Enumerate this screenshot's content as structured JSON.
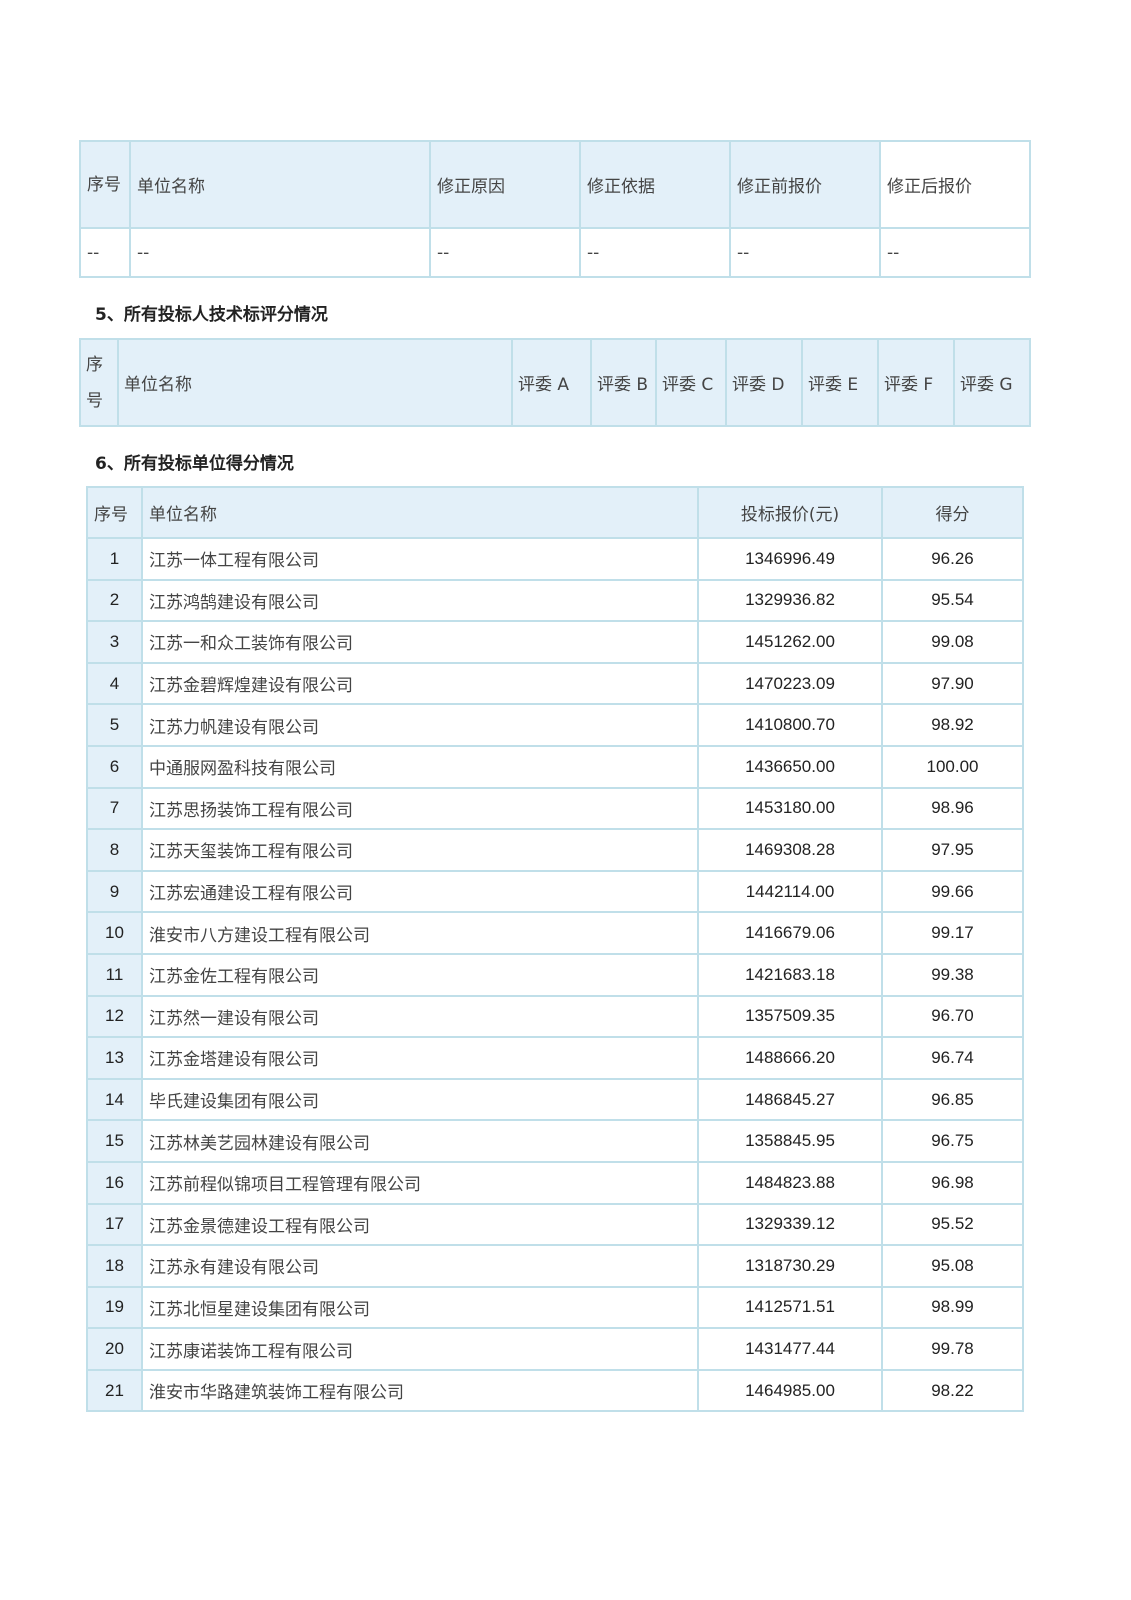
{
  "correction_table": {
    "headers": [
      "序号",
      "单位名称",
      "修正原因",
      "修正依据",
      "修正前报价",
      "修正后报价"
    ],
    "rows": [
      [
        "--",
        "--",
        "--",
        "--",
        "--",
        "--"
      ]
    ]
  },
  "section5": {
    "title": "5、所有投标人技术标评分情况",
    "headers": [
      "序号",
      "单位名称",
      "评委 A",
      "评委 B",
      "评委 C",
      "评委 D",
      "评委 E",
      "评委 F",
      "评委 G"
    ]
  },
  "section6": {
    "title": "6、所有投标单位得分情况",
    "headers": [
      "序号",
      "单位名称",
      "投标报价(元)",
      "得分"
    ],
    "rows": [
      [
        "1",
        "江苏一体工程有限公司",
        "1346996.49",
        "96.26"
      ],
      [
        "2",
        "江苏鸿鹄建设有限公司",
        "1329936.82",
        "95.54"
      ],
      [
        "3",
        "江苏一和众工装饰有限公司",
        "1451262.00",
        "99.08"
      ],
      [
        "4",
        "江苏金碧辉煌建设有限公司",
        "1470223.09",
        "97.90"
      ],
      [
        "5",
        "江苏力帆建设有限公司",
        "1410800.70",
        "98.92"
      ],
      [
        "6",
        "中通服网盈科技有限公司",
        "1436650.00",
        "100.00"
      ],
      [
        "7",
        "江苏思扬装饰工程有限公司",
        "1453180.00",
        "98.96"
      ],
      [
        "8",
        "江苏天玺装饰工程有限公司",
        "1469308.28",
        "97.95"
      ],
      [
        "9",
        "江苏宏通建设工程有限公司",
        "1442114.00",
        "99.66"
      ],
      [
        "10",
        "淮安市八方建设工程有限公司",
        "1416679.06",
        "99.17"
      ],
      [
        "11",
        "江苏金佐工程有限公司",
        "1421683.18",
        "99.38"
      ],
      [
        "12",
        "江苏然一建设有限公司",
        "1357509.35",
        "96.70"
      ],
      [
        "13",
        "江苏金塔建设有限公司",
        "1488666.20",
        "96.74"
      ],
      [
        "14",
        "毕氏建设集团有限公司",
        "1486845.27",
        "96.85"
      ],
      [
        "15",
        "江苏林美艺园林建设有限公司",
        "1358845.95",
        "96.75"
      ],
      [
        "16",
        "江苏前程似锦项目工程管理有限公司",
        "1484823.88",
        "96.98"
      ],
      [
        "17",
        "江苏金景德建设工程有限公司",
        "1329339.12",
        "95.52"
      ],
      [
        "18",
        "江苏永有建设有限公司",
        "1318730.29",
        "95.08"
      ],
      [
        "19",
        "江苏北恒星建设集团有限公司",
        "1412571.51",
        "98.99"
      ],
      [
        "20",
        "江苏康诺装饰工程有限公司",
        "1431477.44",
        "99.78"
      ],
      [
        "21",
        "淮安市华路建筑装饰工程有限公司",
        "1464985.00",
        "98.22"
      ]
    ]
  }
}
